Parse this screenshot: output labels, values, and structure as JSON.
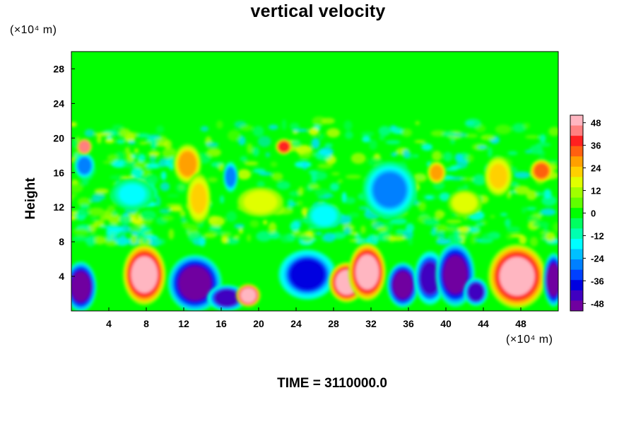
{
  "chart_data": {
    "type": "heatmap",
    "title": "vertical velocity",
    "ylabel": "Height",
    "y_unit": "(×10⁴ m)",
    "x_unit": "(×10⁴ m)",
    "xlim": [
      0,
      52
    ],
    "ylim": [
      0,
      30
    ],
    "x_ticks": [
      4,
      8,
      12,
      16,
      20,
      24,
      28,
      32,
      36,
      40,
      44,
      48
    ],
    "y_ticks": [
      4,
      8,
      12,
      16,
      20,
      24,
      28
    ],
    "colorbar": {
      "range": [
        -52,
        52
      ],
      "ticks": [
        48,
        36,
        24,
        12,
        0,
        -12,
        -24,
        -36,
        -48
      ]
    },
    "features": [
      {
        "x": 1.0,
        "y": 2.8,
        "rx": 1.4,
        "ry": 2.6,
        "value": -52
      },
      {
        "x": 7.8,
        "y": 4.2,
        "rx": 2.0,
        "ry": 3.2,
        "value": 52
      },
      {
        "x": 13.2,
        "y": 3.2,
        "rx": 2.6,
        "ry": 3.0,
        "value": -52
      },
      {
        "x": 16.6,
        "y": 1.5,
        "rx": 1.8,
        "ry": 1.2,
        "value": -46
      },
      {
        "x": 18.9,
        "y": 1.8,
        "rx": 1.0,
        "ry": 1.0,
        "value": 52
      },
      {
        "x": 25.2,
        "y": 4.2,
        "rx": 2.8,
        "ry": 2.6,
        "value": -40
      },
      {
        "x": 29.4,
        "y": 3.3,
        "rx": 1.6,
        "ry": 2.0,
        "value": 52
      },
      {
        "x": 31.6,
        "y": 4.5,
        "rx": 1.7,
        "ry": 3.0,
        "value": 52
      },
      {
        "x": 35.4,
        "y": 3.0,
        "rx": 1.4,
        "ry": 2.3,
        "value": -52
      },
      {
        "x": 38.3,
        "y": 3.8,
        "rx": 1.4,
        "ry": 2.8,
        "value": -46
      },
      {
        "x": 41.0,
        "y": 4.2,
        "rx": 1.8,
        "ry": 3.4,
        "value": -52
      },
      {
        "x": 43.2,
        "y": 2.2,
        "rx": 1.0,
        "ry": 1.3,
        "value": -46
      },
      {
        "x": 47.6,
        "y": 4.0,
        "rx": 2.8,
        "ry": 3.4,
        "value": 52
      },
      {
        "x": 51.5,
        "y": 3.6,
        "rx": 0.8,
        "ry": 2.8,
        "value": -52
      },
      {
        "x": 34.0,
        "y": 14.0,
        "rx": 2.6,
        "ry": 3.0,
        "value": -30
      },
      {
        "x": 1.4,
        "y": 16.8,
        "rx": 0.8,
        "ry": 1.2,
        "value": -26
      },
      {
        "x": 12.4,
        "y": 17.0,
        "rx": 1.2,
        "ry": 2.0,
        "value": 30
      },
      {
        "x": 13.6,
        "y": 13.0,
        "rx": 1.0,
        "ry": 2.6,
        "value": 24
      },
      {
        "x": 20.2,
        "y": 12.6,
        "rx": 2.2,
        "ry": 1.4,
        "value": 20
      },
      {
        "x": 45.6,
        "y": 15.6,
        "rx": 1.2,
        "ry": 2.0,
        "value": 24
      },
      {
        "x": 50.2,
        "y": 16.2,
        "rx": 0.9,
        "ry": 1.0,
        "value": 36
      },
      {
        "x": 1.4,
        "y": 19.0,
        "rx": 0.5,
        "ry": 0.6,
        "value": 44
      },
      {
        "x": 22.7,
        "y": 19.0,
        "rx": 0.6,
        "ry": 0.6,
        "value": 40
      },
      {
        "x": 17.0,
        "y": 15.5,
        "rx": 0.5,
        "ry": 1.5,
        "value": -30
      },
      {
        "x": 39.0,
        "y": 16.0,
        "rx": 0.7,
        "ry": 1.0,
        "value": 28
      },
      {
        "x": 27.0,
        "y": 11.0,
        "rx": 1.5,
        "ry": 1.2,
        "value": -20
      },
      {
        "x": 42.0,
        "y": 12.5,
        "rx": 1.5,
        "ry": 1.2,
        "value": 18
      },
      {
        "x": 6.5,
        "y": 13.5,
        "rx": 2.0,
        "ry": 1.5,
        "value": -16
      }
    ],
    "footer": "TIME = 3110000.0"
  }
}
